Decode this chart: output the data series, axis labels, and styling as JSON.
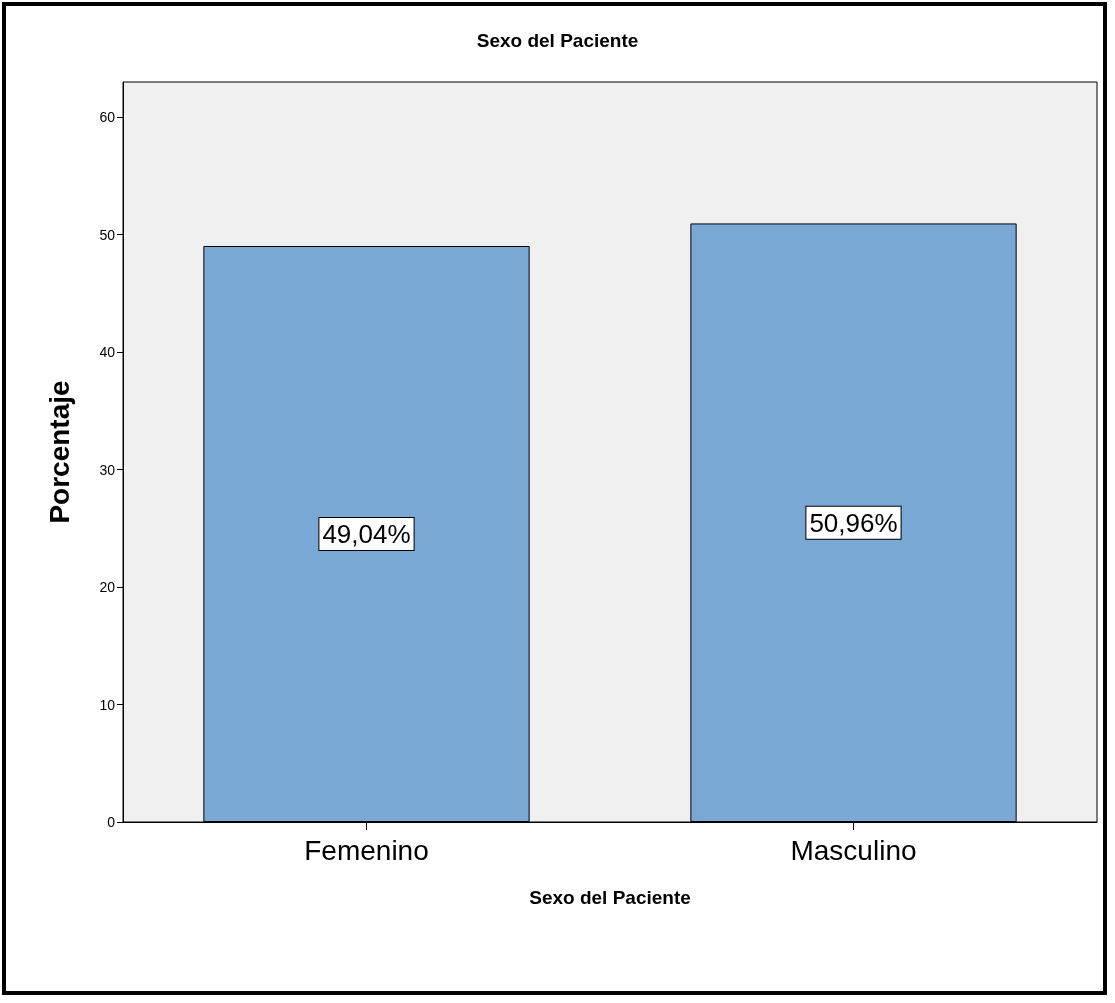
{
  "chart_data": {
    "type": "bar",
    "title": "Sexo del Paciente",
    "xlabel": "Sexo del Paciente",
    "ylabel": "Porcentaje",
    "categories": [
      "Femenino",
      "Masculino"
    ],
    "values": [
      49.04,
      50.96
    ],
    "value_labels": [
      "49,04%",
      "50,96%"
    ],
    "color": "#79a8d4",
    "ylim": [
      0,
      63
    ],
    "yticks": [
      0,
      10,
      20,
      30,
      40,
      50,
      60
    ],
    "grid": false
  }
}
